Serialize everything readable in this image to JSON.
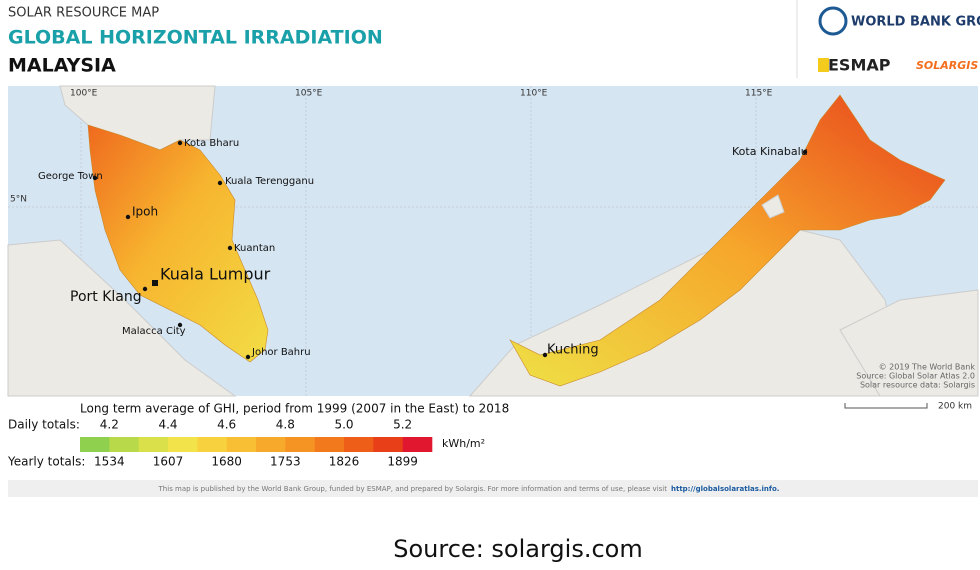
{
  "header": {
    "category": "SOLAR RESOURCE MAP",
    "title": "GLOBAL HORIZONTAL IRRADIATION",
    "country": "MALAYSIA"
  },
  "logos": {
    "world_bank": "WORLD BANK GROUP",
    "esmap": "ESMAP",
    "solargis": "SOLARGIS"
  },
  "map": {
    "graticule": [
      "100°E",
      "105°E",
      "110°E",
      "115°E"
    ],
    "latitude": "5°N",
    "cities": [
      "Kota Bharu",
      "Kuala Terengganu",
      "George Town",
      "Ipoh",
      "Kuantan",
      "Kuala Lumpur",
      "Port Klang",
      "Malacca City",
      "Johor Bahru",
      "Kuching",
      "Kota Kinabalu"
    ],
    "attribution": [
      "© 2019 The World Bank",
      "Source: Global Solar Atlas 2.0",
      "Solar resource data: Solargis"
    ],
    "scale": "200 km"
  },
  "legend": {
    "title": "Long term average of GHI, period from 1999 (2007 in the East) to 2018",
    "daily_label": "Daily totals:",
    "daily": [
      "4.2",
      "4.4",
      "4.6",
      "4.8",
      "5.0",
      "5.2"
    ],
    "unit": "kWh/m²",
    "yearly_label": "Yearly totals:",
    "yearly": [
      "1534",
      "1607",
      "1680",
      "1753",
      "1826",
      "1899"
    ],
    "colors": [
      "#8fd14f",
      "#b7d94a",
      "#d9e04a",
      "#f2e34a",
      "#f7d23e",
      "#f8bf35",
      "#f7a92c",
      "#f59423",
      "#f27a1c",
      "#ee5e18",
      "#e83f19",
      "#e0172e"
    ]
  },
  "footer": {
    "notice": "This map is published by the World Bank Group, funded by ESMAP, and prepared by Solargis. For more information and terms of use, please visit",
    "link": "http://globalsolaratlas.info."
  },
  "source": "Source: solargis.com"
}
